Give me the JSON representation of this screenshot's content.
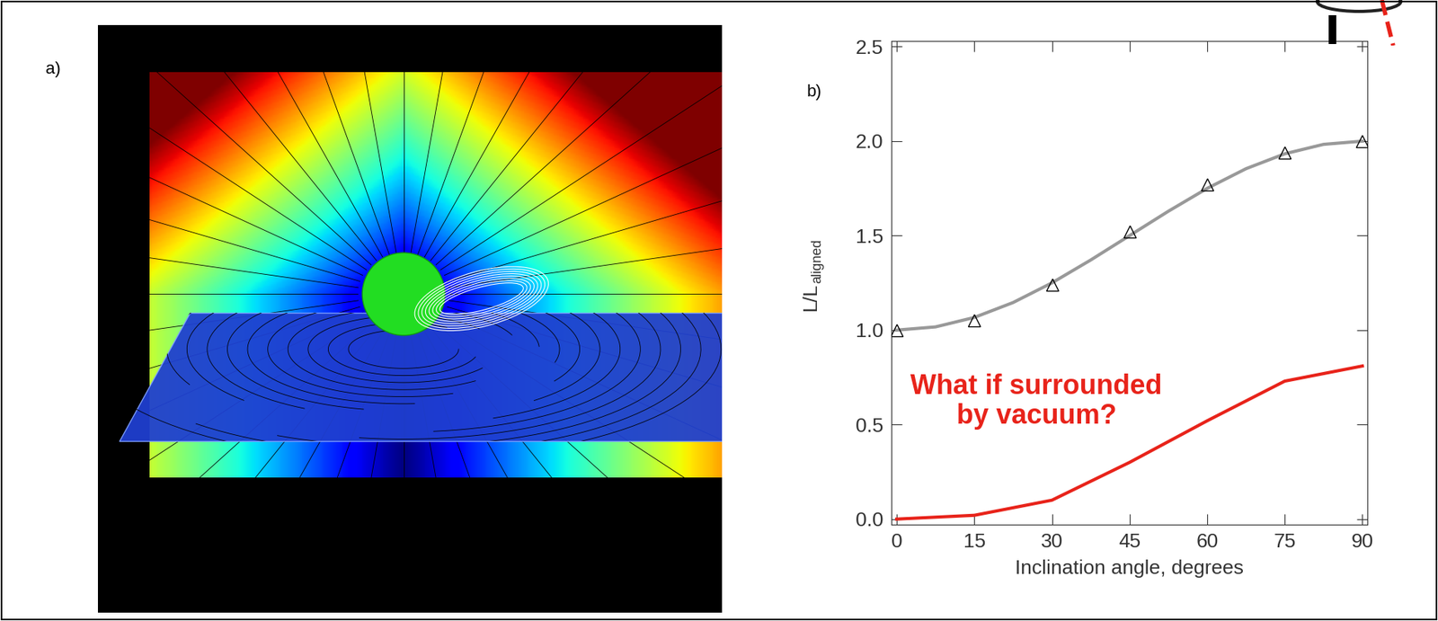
{
  "image_panel": {
    "label": "a)"
  },
  "chart_data": {
    "type": "line",
    "panel_label": "b)",
    "xlabel": "Inclination angle, degrees",
    "ylabel": "L/L",
    "ylabel_subscript": "aligned",
    "annotation": "What if surrounded\nby vacuum?",
    "series": [
      {
        "type": "scatter",
        "marker": "triangle",
        "color": "#000000",
        "x": [
          0,
          15,
          30,
          45,
          60,
          75,
          90
        ],
        "values": [
          1.0,
          1.05,
          1.24,
          1.52,
          1.77,
          1.94,
          2.0
        ]
      },
      {
        "type": "line",
        "color": "#999999",
        "x": [
          0,
          7.5,
          15,
          22.5,
          30,
          37.5,
          45,
          52.5,
          60,
          67.5,
          75,
          82.5,
          90
        ],
        "values": [
          1.0,
          1.017,
          1.067,
          1.146,
          1.25,
          1.371,
          1.5,
          1.629,
          1.75,
          1.854,
          1.933,
          1.983,
          2.0
        ]
      },
      {
        "type": "line",
        "color": "#e8231a",
        "x": [
          0,
          15,
          30,
          45,
          60,
          75,
          90
        ],
        "values": [
          0.0,
          0.02,
          0.1,
          0.3,
          0.52,
          0.73,
          0.81
        ]
      }
    ],
    "xlim": [
      -1,
      91
    ],
    "xticks": [
      0,
      15,
      30,
      45,
      60,
      75,
      90
    ],
    "ylim": [
      -0.03,
      2.53
    ],
    "yticks": [
      {
        "value": 0,
        "label": "0.0"
      },
      {
        "value": 0.5,
        "label": "0.5"
      },
      {
        "value": 1.0,
        "label": "1.0"
      },
      {
        "value": 1.5,
        "label": "1.5"
      },
      {
        "value": 2.0,
        "label": "2.0"
      },
      {
        "value": 2.5,
        "label": "2.5"
      }
    ],
    "grid": false
  }
}
